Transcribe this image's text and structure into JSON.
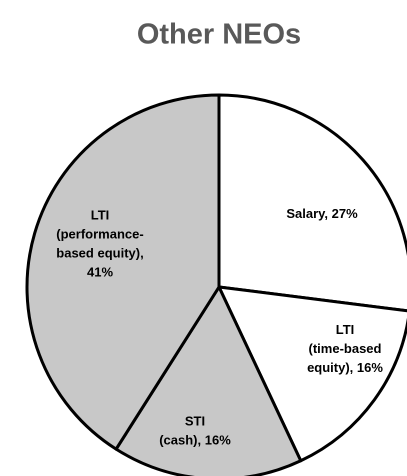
{
  "chart_data": {
    "type": "pie",
    "title": "Other NEOs",
    "values": [
      27,
      16,
      16,
      41
    ],
    "value_labels": [
      [
        "Salary, 27%"
      ],
      [
        "LTI",
        "(time-based",
        "equity), 16%"
      ],
      [
        "STI",
        "(cash), 16%"
      ],
      [
        "LTI",
        "(performance-",
        "based equity),",
        "41%"
      ]
    ],
    "colors": [
      "#ffffff",
      "#ffffff",
      "#c8c8c8",
      "#c8c8c8"
    ],
    "edge_color": "#000000"
  }
}
